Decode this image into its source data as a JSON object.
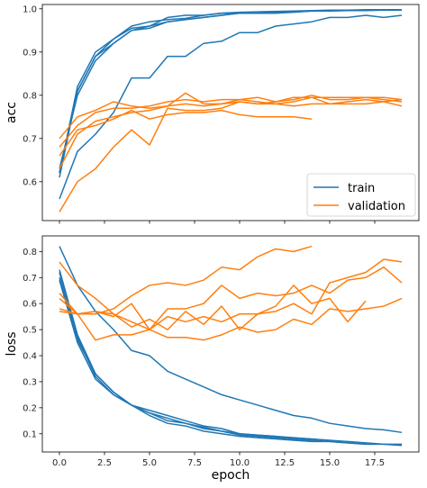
{
  "chart_data": [
    {
      "type": "line",
      "ylabel": "acc",
      "xlabel": "",
      "xlim": [
        -0.95,
        19.95
      ],
      "ylim": [
        0.51,
        1.01
      ],
      "xticks": [
        "0.0",
        "2.5",
        "5.0",
        "7.5",
        "10.0",
        "12.5",
        "15.0",
        "17.5"
      ],
      "xtick_values": [
        0,
        2.5,
        5,
        7.5,
        10,
        12.5,
        15,
        17.5
      ],
      "xticks_labeled": false,
      "yticks": [
        "0.6",
        "0.7",
        "0.8",
        "0.9",
        "1.0"
      ],
      "ytick_values": [
        0.6,
        0.7,
        0.8,
        0.9,
        1.0
      ],
      "grid": false,
      "legend": {
        "placement": "lower-right",
        "entries": [
          {
            "label": "train",
            "color": "#1f77b4"
          },
          {
            "label": "validation",
            "color": "#ff7f0e"
          }
        ]
      },
      "series": [
        {
          "group": "train",
          "color": "#1f77b4",
          "x": [
            0,
            1,
            2,
            3,
            4,
            5,
            6,
            7,
            8,
            9,
            10,
            11,
            12,
            13,
            14,
            15,
            16,
            17,
            18,
            19
          ],
          "values": [
            0.62,
            0.82,
            0.9,
            0.93,
            0.96,
            0.97,
            0.975,
            0.978,
            0.985,
            0.99,
            0.992,
            0.993,
            0.994,
            0.995,
            0.996,
            0.997,
            0.997,
            0.998,
            0.998,
            0.998
          ]
        },
        {
          "group": "train",
          "color": "#1f77b4",
          "x": [
            0,
            1,
            2,
            3,
            4,
            5,
            6,
            7,
            8,
            9,
            10,
            11,
            12,
            13,
            14,
            15,
            16,
            17,
            18,
            19
          ],
          "values": [
            0.61,
            0.81,
            0.89,
            0.92,
            0.95,
            0.96,
            0.97,
            0.975,
            0.98,
            0.985,
            0.99,
            0.99,
            0.992,
            0.994,
            0.995,
            0.996,
            0.996,
            0.997,
            0.997,
            0.997
          ]
        },
        {
          "group": "train",
          "color": "#1f77b4",
          "x": [
            0,
            1,
            2,
            3,
            4,
            5,
            6,
            7,
            8,
            9,
            10,
            11,
            12,
            13,
            14,
            15,
            16,
            17,
            18,
            19
          ],
          "values": [
            0.63,
            0.8,
            0.88,
            0.92,
            0.95,
            0.955,
            0.97,
            0.975,
            0.98,
            0.985,
            0.99,
            0.99,
            0.99,
            0.993,
            0.995,
            0.996,
            0.996,
            0.997,
            0.997,
            0.997
          ]
        },
        {
          "group": "train",
          "color": "#1f77b4",
          "x": [
            0,
            1,
            2,
            3,
            4,
            5,
            6,
            7,
            8,
            9,
            10,
            11,
            12,
            13,
            14,
            15,
            16,
            17,
            18,
            19
          ],
          "values": [
            0.62,
            0.81,
            0.89,
            0.93,
            0.955,
            0.96,
            0.98,
            0.985,
            0.985,
            0.99,
            0.99,
            0.99,
            0.99,
            0.992,
            0.995,
            0.995,
            0.996,
            0.996,
            0.997,
            0.998
          ]
        },
        {
          "group": "train",
          "color": "#1f77b4",
          "x": [
            0,
            1,
            2,
            3,
            4,
            5,
            6,
            7,
            8,
            9,
            10,
            11,
            12,
            13,
            14,
            15,
            16,
            17,
            18,
            19
          ],
          "values": [
            0.56,
            0.67,
            0.71,
            0.76,
            0.84,
            0.84,
            0.89,
            0.89,
            0.92,
            0.925,
            0.945,
            0.945,
            0.96,
            0.965,
            0.97,
            0.98,
            0.98,
            0.985,
            0.98,
            0.985
          ]
        },
        {
          "group": "validation",
          "color": "#ff7f0e",
          "x": [
            0,
            1,
            2,
            3,
            4,
            5,
            6,
            7,
            8,
            9,
            10,
            11,
            12,
            13,
            14,
            15,
            16,
            17,
            18,
            19
          ],
          "values": [
            0.53,
            0.6,
            0.63,
            0.68,
            0.72,
            0.685,
            0.77,
            0.765,
            0.765,
            0.77,
            0.785,
            0.78,
            0.785,
            0.79,
            0.8,
            0.79,
            0.79,
            0.795,
            0.795,
            0.79
          ]
        },
        {
          "group": "validation",
          "color": "#ff7f0e",
          "x": [
            0,
            1,
            2,
            3,
            4,
            5,
            6,
            7,
            8,
            9,
            10,
            11,
            12,
            13,
            14,
            15,
            16,
            17,
            18,
            19
          ],
          "values": [
            0.63,
            0.71,
            0.74,
            0.75,
            0.76,
            0.765,
            0.775,
            0.805,
            0.78,
            0.78,
            0.79,
            0.785,
            0.78,
            0.785,
            0.795,
            0.78,
            0.785,
            0.79,
            0.785,
            0.79
          ]
        },
        {
          "group": "validation",
          "color": "#ff7f0e",
          "x": [
            0,
            1,
            2,
            3,
            4,
            5,
            6,
            7,
            8,
            9,
            10,
            11,
            12,
            13,
            14
          ],
          "values": [
            0.66,
            0.72,
            0.73,
            0.745,
            0.765,
            0.745,
            0.755,
            0.76,
            0.76,
            0.765,
            0.755,
            0.75,
            0.75,
            0.75,
            0.745
          ]
        },
        {
          "group": "validation",
          "color": "#ff7f0e",
          "x": [
            0,
            1,
            2,
            3,
            4,
            5,
            6,
            7,
            8,
            9,
            10,
            11,
            12,
            13,
            14,
            15,
            16,
            17,
            18,
            19
          ],
          "values": [
            0.68,
            0.73,
            0.76,
            0.77,
            0.77,
            0.775,
            0.785,
            0.79,
            0.785,
            0.79,
            0.79,
            0.795,
            0.785,
            0.795,
            0.795,
            0.795,
            0.795,
            0.795,
            0.79,
            0.785
          ]
        },
        {
          "group": "validation",
          "color": "#ff7f0e",
          "x": [
            0,
            1,
            2,
            3,
            4,
            5,
            6,
            7,
            8,
            9,
            10,
            11,
            12,
            13,
            14,
            15,
            16,
            17,
            18,
            19
          ],
          "values": [
            0.7,
            0.75,
            0.765,
            0.785,
            0.775,
            0.77,
            0.775,
            0.78,
            0.775,
            0.78,
            0.785,
            0.78,
            0.78,
            0.775,
            0.78,
            0.78,
            0.78,
            0.78,
            0.785,
            0.775
          ]
        }
      ]
    },
    {
      "type": "line",
      "ylabel": "loss",
      "xlabel": "epoch",
      "xlim": [
        -0.95,
        19.95
      ],
      "ylim": [
        0.03,
        0.86
      ],
      "xticks": [
        "0.0",
        "2.5",
        "5.0",
        "7.5",
        "10.0",
        "12.5",
        "15.0",
        "17.5"
      ],
      "xtick_values": [
        0,
        2.5,
        5,
        7.5,
        10,
        12.5,
        15,
        17.5
      ],
      "xticks_labeled": true,
      "yticks": [
        "0.1",
        "0.2",
        "0.3",
        "0.4",
        "0.5",
        "0.6",
        "0.7",
        "0.8"
      ],
      "ytick_values": [
        0.1,
        0.2,
        0.3,
        0.4,
        0.5,
        0.6,
        0.7,
        0.8
      ],
      "grid": false,
      "series": [
        {
          "group": "train",
          "color": "#1f77b4",
          "x": [
            0,
            1,
            2,
            3,
            4,
            5,
            6,
            7,
            8,
            9,
            10,
            11,
            12,
            13,
            14,
            15,
            16,
            17,
            18,
            19
          ],
          "values": [
            0.82,
            0.67,
            0.57,
            0.5,
            0.42,
            0.4,
            0.34,
            0.31,
            0.28,
            0.25,
            0.23,
            0.21,
            0.19,
            0.17,
            0.16,
            0.14,
            0.13,
            0.12,
            0.115,
            0.105
          ]
        },
        {
          "group": "train",
          "color": "#1f77b4",
          "x": [
            0,
            1,
            2,
            3,
            4,
            5,
            6,
            7,
            8,
            9,
            10,
            11,
            12,
            13,
            14,
            15,
            16,
            17
          ],
          "values": [
            0.73,
            0.48,
            0.33,
            0.26,
            0.21,
            0.18,
            0.16,
            0.14,
            0.12,
            0.11,
            0.095,
            0.09,
            0.085,
            0.08,
            0.075,
            0.07,
            0.065,
            0.06
          ]
        },
        {
          "group": "train",
          "color": "#1f77b4",
          "x": [
            0,
            1,
            2,
            3,
            4,
            5,
            6,
            7,
            8,
            9,
            10,
            11,
            12,
            13,
            14,
            15,
            16,
            17,
            18,
            19
          ],
          "values": [
            0.72,
            0.47,
            0.32,
            0.25,
            0.21,
            0.17,
            0.14,
            0.13,
            0.11,
            0.1,
            0.09,
            0.085,
            0.08,
            0.075,
            0.07,
            0.07,
            0.065,
            0.06,
            0.06,
            0.055
          ]
        },
        {
          "group": "train",
          "color": "#1f77b4",
          "x": [
            0,
            1,
            2,
            3,
            4,
            5,
            6,
            7,
            8,
            9,
            10,
            11,
            12,
            13,
            14
          ],
          "values": [
            0.7,
            0.46,
            0.33,
            0.26,
            0.21,
            0.18,
            0.15,
            0.14,
            0.125,
            0.11,
            0.1,
            0.095,
            0.09,
            0.08,
            0.075
          ]
        },
        {
          "group": "train",
          "color": "#1f77b4",
          "x": [
            0,
            1,
            2,
            3,
            4,
            5,
            6,
            7,
            8,
            9,
            10,
            11,
            12,
            13,
            14,
            15,
            16,
            17,
            18,
            19
          ],
          "values": [
            0.69,
            0.45,
            0.31,
            0.25,
            0.21,
            0.19,
            0.17,
            0.15,
            0.13,
            0.12,
            0.1,
            0.095,
            0.09,
            0.085,
            0.08,
            0.075,
            0.07,
            0.065,
            0.06,
            0.06
          ]
        },
        {
          "group": "validation",
          "color": "#ff7f0e",
          "x": [
            0,
            1,
            2,
            3,
            4,
            5,
            6,
            7,
            8,
            9,
            10,
            11,
            12,
            13,
            14
          ],
          "values": [
            0.57,
            0.56,
            0.56,
            0.58,
            0.63,
            0.67,
            0.68,
            0.67,
            0.69,
            0.74,
            0.73,
            0.78,
            0.81,
            0.8,
            0.82
          ]
        },
        {
          "group": "validation",
          "color": "#ff7f0e",
          "x": [
            0,
            1,
            2,
            3,
            4,
            5,
            6,
            7,
            8,
            9,
            10,
            11,
            12,
            13,
            14,
            15,
            16,
            17,
            18,
            19
          ],
          "values": [
            0.64,
            0.56,
            0.57,
            0.55,
            0.6,
            0.5,
            0.58,
            0.58,
            0.6,
            0.67,
            0.62,
            0.64,
            0.63,
            0.64,
            0.67,
            0.64,
            0.69,
            0.7,
            0.74,
            0.68
          ]
        },
        {
          "group": "validation",
          "color": "#ff7f0e",
          "x": [
            0,
            1,
            2,
            3,
            4,
            5,
            6,
            7,
            8,
            9,
            10,
            11,
            12,
            13,
            14,
            15,
            16,
            17
          ],
          "values": [
            0.62,
            0.56,
            0.57,
            0.56,
            0.51,
            0.54,
            0.5,
            0.57,
            0.52,
            0.59,
            0.5,
            0.56,
            0.59,
            0.67,
            0.6,
            0.62,
            0.53,
            0.61
          ]
        },
        {
          "group": "validation",
          "color": "#ff7f0e",
          "x": [
            0,
            1,
            2,
            3,
            4,
            5,
            6,
            7,
            8,
            9,
            10,
            11,
            12,
            13,
            14,
            15,
            16,
            17,
            18,
            19
          ],
          "values": [
            0.76,
            0.67,
            0.62,
            0.56,
            0.53,
            0.5,
            0.55,
            0.53,
            0.55,
            0.53,
            0.56,
            0.56,
            0.57,
            0.6,
            0.56,
            0.68,
            0.7,
            0.72,
            0.77,
            0.76
          ]
        },
        {
          "group": "validation",
          "color": "#ff7f0e",
          "x": [
            0,
            1,
            2,
            3,
            4,
            5,
            6,
            7,
            8,
            9,
            10,
            11,
            12,
            13,
            14,
            15,
            16,
            17,
            18,
            19
          ],
          "values": [
            0.58,
            0.56,
            0.46,
            0.48,
            0.48,
            0.5,
            0.47,
            0.47,
            0.46,
            0.48,
            0.51,
            0.49,
            0.5,
            0.54,
            0.52,
            0.58,
            0.57,
            0.58,
            0.59,
            0.62
          ]
        }
      ]
    }
  ]
}
